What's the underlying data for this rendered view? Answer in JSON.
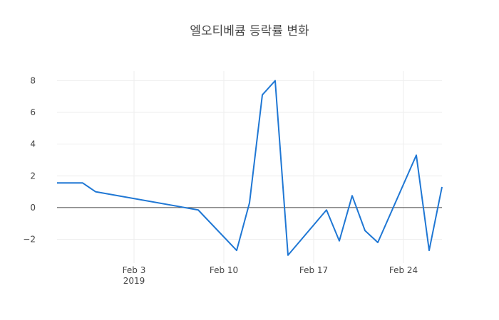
{
  "chart_data": {
    "type": "line",
    "title": "엘오티베큠 등락률 변화",
    "xlabel": "",
    "ylabel": "",
    "x": [
      "2019-01-28",
      "2019-01-29",
      "2019-01-30",
      "2019-01-31",
      "2019-02-08",
      "2019-02-11",
      "2019-02-12",
      "2019-02-13",
      "2019-02-14",
      "2019-02-15",
      "2019-02-18",
      "2019-02-19",
      "2019-02-20",
      "2019-02-21",
      "2019-02-22",
      "2019-02-25",
      "2019-02-26",
      "2019-02-27"
    ],
    "series": [
      {
        "values": [
          1.55,
          1.55,
          1.55,
          1.0,
          -0.15,
          -2.7,
          0.3,
          7.1,
          8.0,
          -3.0,
          -0.15,
          -2.1,
          0.75,
          -1.45,
          -2.2,
          3.3,
          -2.7,
          1.3
        ],
        "color": "#1f77d4"
      }
    ],
    "xlim": [
      "2019-01-28",
      "2019-02-27"
    ],
    "ylim": [
      -3.5,
      8.6
    ],
    "xticks": [
      {
        "date": "2019-02-03",
        "label": "Feb 3",
        "sublabel": "2019"
      },
      {
        "date": "2019-02-10",
        "label": "Feb 10",
        "sublabel": ""
      },
      {
        "date": "2019-02-17",
        "label": "Feb 17",
        "sublabel": ""
      },
      {
        "date": "2019-02-24",
        "label": "Feb 24",
        "sublabel": ""
      }
    ],
    "yticks": [
      -2,
      0,
      2,
      4,
      6,
      8
    ],
    "ytick_labels": [
      "−2",
      "0",
      "2",
      "4",
      "6",
      "8"
    ],
    "grid": true,
    "zero_line": true
  }
}
